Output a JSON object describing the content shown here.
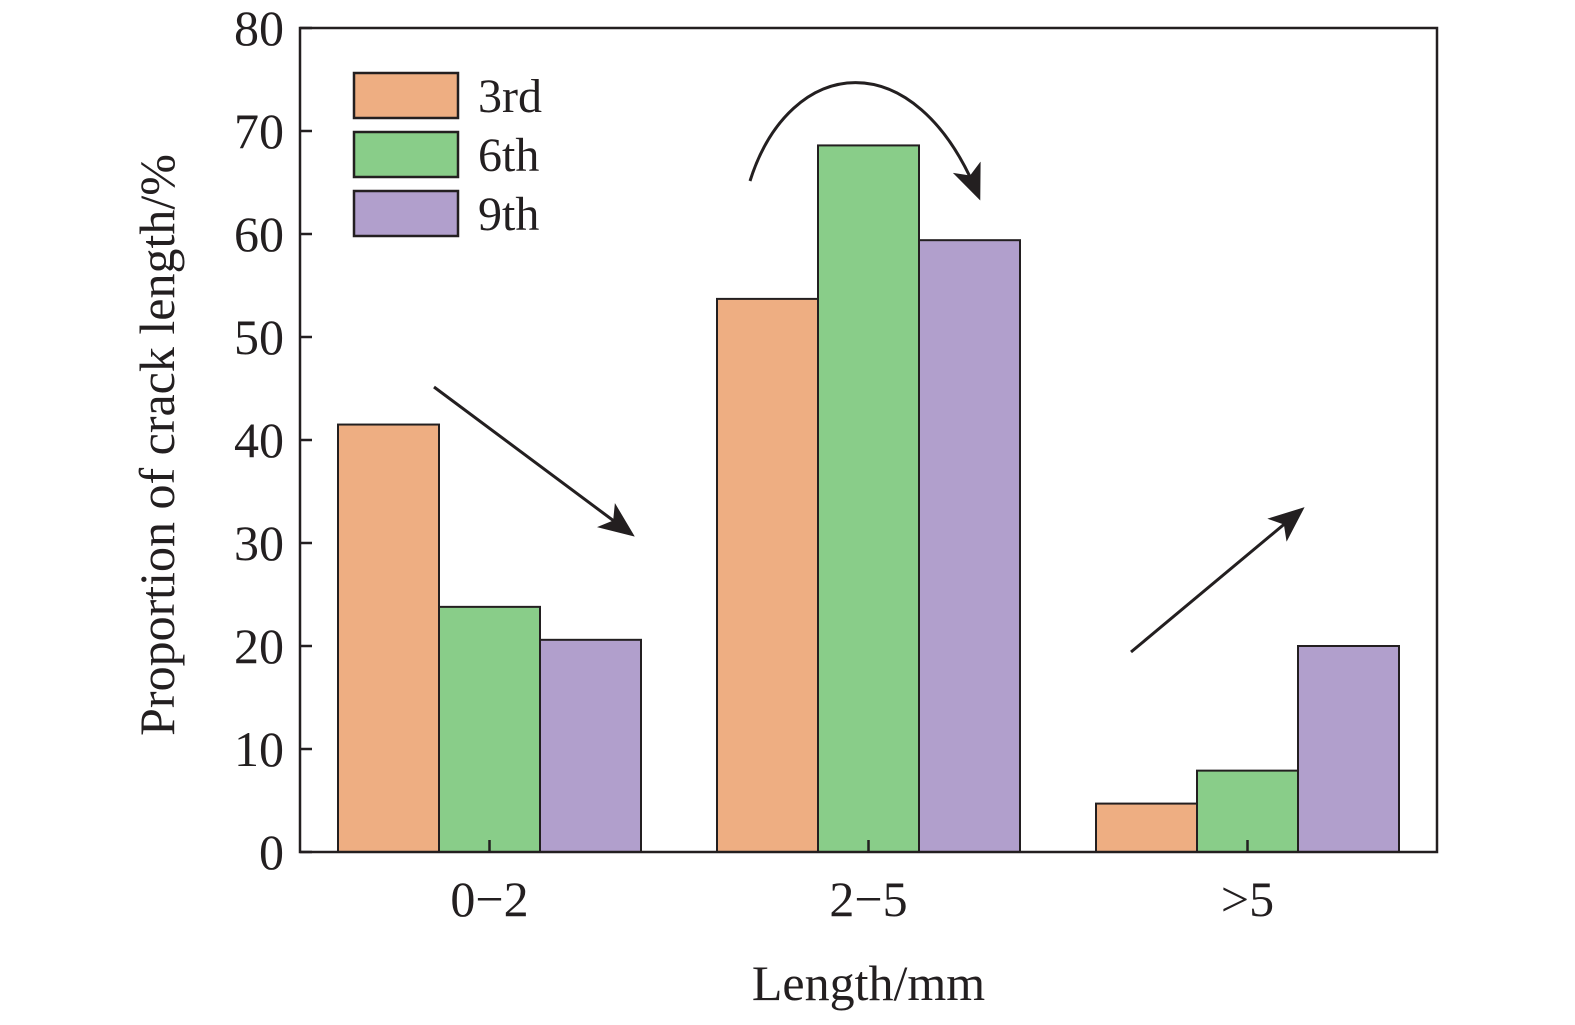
{
  "chart_data": {
    "type": "bar",
    "title": "",
    "xlabel": "Length/mm",
    "ylabel": "Proportion of crack length/%",
    "categories": [
      "0−2",
      "2−5",
      ">5"
    ],
    "series": [
      {
        "name": "3rd",
        "values": [
          41.5,
          53.7,
          4.7
        ],
        "color": "#EEAE82"
      },
      {
        "name": "6th",
        "values": [
          23.8,
          68.6,
          7.9
        ],
        "color": "#89CD89"
      },
      {
        "name": "9th",
        "values": [
          20.6,
          59.4,
          20.0
        ],
        "color": "#B19FCC"
      }
    ],
    "ylim": [
      0,
      80
    ],
    "yticks": [
      0,
      10,
      20,
      30,
      40,
      50,
      60,
      70,
      80
    ],
    "grid": false,
    "legend_position": "top-left",
    "annotations": [
      {
        "type": "arrow",
        "meaning": "decreasing trend",
        "category": "0−2"
      },
      {
        "type": "curved-arrow",
        "meaning": "rise then fall",
        "category": "2−5"
      },
      {
        "type": "arrow",
        "meaning": "increasing trend",
        "category": ">5"
      }
    ]
  }
}
